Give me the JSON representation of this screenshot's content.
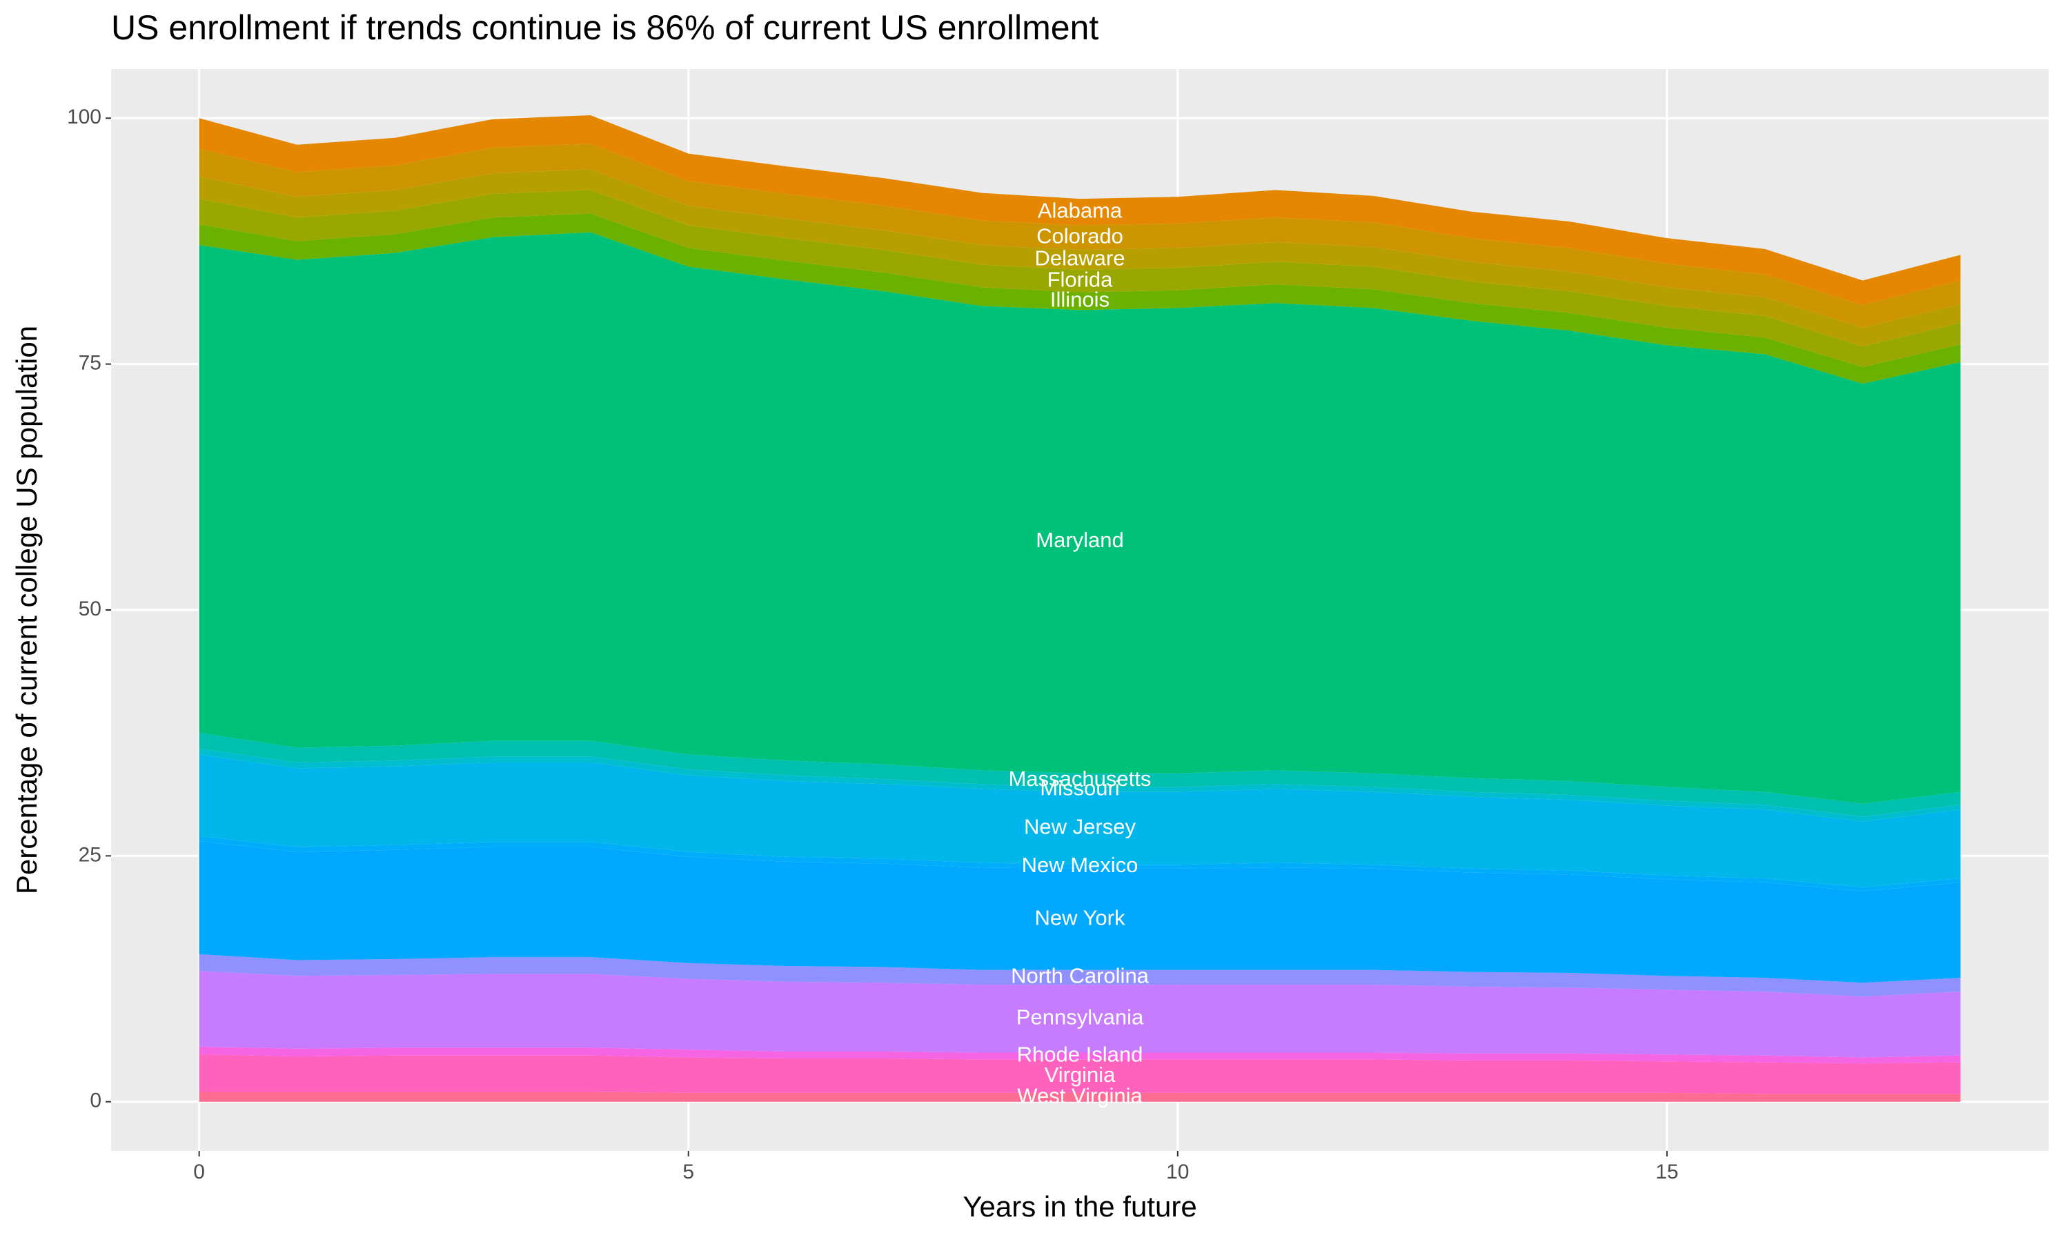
{
  "chart_data": {
    "type": "stacked_area",
    "title": "US enrollment if trends continue is 86% of current US enrollment",
    "x_label": "Years in the future",
    "y_label": "Percentage of current college US population",
    "x": [
      0,
      1,
      2,
      3,
      4,
      5,
      6,
      7,
      8,
      9,
      10,
      11,
      12,
      13,
      14,
      15,
      16,
      17,
      18
    ],
    "xlim": [
      -0.9,
      18.9
    ],
    "xticks": [
      0,
      5,
      10,
      15
    ],
    "ylim": [
      -5,
      105
    ],
    "yticks": [
      0,
      25,
      50,
      75,
      100
    ],
    "grid": true,
    "label_x": 9,
    "series": [
      {
        "name": "West Virginia",
        "color": "#FF6C91",
        "values": [
          1.0,
          1.0,
          1.0,
          1.0,
          1.0,
          0.9,
          0.9,
          0.9,
          0.9,
          0.9,
          0.9,
          0.9,
          0.9,
          0.9,
          0.9,
          0.9,
          0.8,
          0.8,
          0.8
        ]
      },
      {
        "name": "Virginia",
        "color": "#FF62BC",
        "values": [
          3.8,
          3.6,
          3.7,
          3.7,
          3.7,
          3.6,
          3.5,
          3.5,
          3.4,
          3.4,
          3.4,
          3.4,
          3.4,
          3.3,
          3.3,
          3.2,
          3.2,
          3.1,
          3.2
        ]
      },
      {
        "name": "Rhode Island",
        "color": "#F564E3",
        "values": [
          0.8,
          0.8,
          0.8,
          0.8,
          0.8,
          0.8,
          0.7,
          0.7,
          0.7,
          0.7,
          0.7,
          0.7,
          0.7,
          0.7,
          0.7,
          0.7,
          0.7,
          0.6,
          0.7
        ]
      },
      {
        "name": "Pennsylvania",
        "color": "#C77CFF",
        "values": [
          7.7,
          7.4,
          7.4,
          7.5,
          7.5,
          7.2,
          7.1,
          7.0,
          6.9,
          6.9,
          6.9,
          6.9,
          6.9,
          6.8,
          6.7,
          6.6,
          6.5,
          6.2,
          6.5
        ]
      },
      {
        "name": "North Carolina",
        "color": "#8F91FF",
        "values": [
          1.7,
          1.6,
          1.6,
          1.7,
          1.7,
          1.6,
          1.6,
          1.6,
          1.5,
          1.5,
          1.5,
          1.5,
          1.5,
          1.5,
          1.5,
          1.4,
          1.4,
          1.4,
          1.4
        ]
      },
      {
        "name": "New York",
        "color": "#00A9FF",
        "values": [
          11.5,
          11.0,
          11.1,
          11.2,
          11.2,
          10.8,
          10.6,
          10.5,
          10.4,
          10.3,
          10.3,
          10.4,
          10.3,
          10.1,
          10.0,
          9.8,
          9.7,
          9.3,
          9.7
        ]
      },
      {
        "name": "New Mexico",
        "color": "#00ADFA",
        "values": [
          0.5,
          0.5,
          0.5,
          0.5,
          0.5,
          0.5,
          0.5,
          0.5,
          0.5,
          0.4,
          0.4,
          0.5,
          0.4,
          0.4,
          0.4,
          0.4,
          0.4,
          0.4,
          0.4
        ]
      },
      {
        "name": "New Jersey",
        "color": "#00B6EB",
        "values": [
          8.3,
          8.0,
          8.0,
          8.1,
          8.1,
          7.8,
          7.7,
          7.6,
          7.5,
          7.4,
          7.4,
          7.5,
          7.4,
          7.3,
          7.2,
          7.1,
          7.0,
          6.7,
          7.0
        ]
      },
      {
        "name": "Missouri",
        "color": "#00BDD0",
        "values": [
          0.6,
          0.6,
          0.6,
          0.6,
          0.6,
          0.6,
          0.6,
          0.5,
          0.5,
          0.5,
          0.5,
          0.5,
          0.5,
          0.5,
          0.5,
          0.5,
          0.5,
          0.5,
          0.5
        ]
      },
      {
        "name": "Massachusetts",
        "color": "#00C0AF",
        "values": [
          1.6,
          1.5,
          1.5,
          1.6,
          1.6,
          1.5,
          1.5,
          1.5,
          1.4,
          1.4,
          1.4,
          1.4,
          1.4,
          1.4,
          1.4,
          1.4,
          1.3,
          1.3,
          1.3
        ]
      },
      {
        "name": "Maryland",
        "color": "#00C17A",
        "values": [
          49.6,
          49.6,
          50.1,
          51.2,
          51.7,
          49.6,
          48.9,
          48.1,
          47.2,
          47.1,
          47.3,
          47.5,
          47.3,
          46.5,
          45.8,
          44.9,
          44.5,
          42.7,
          43.7
        ]
      },
      {
        "name": "Illinois",
        "color": "#6BB100",
        "values": [
          2.1,
          1.9,
          1.9,
          2.0,
          1.9,
          1.9,
          1.9,
          1.9,
          1.9,
          1.8,
          1.8,
          1.9,
          1.9,
          1.8,
          1.8,
          1.8,
          1.7,
          1.7,
          1.8
        ]
      },
      {
        "name": "Florida",
        "color": "#99A800",
        "values": [
          2.6,
          2.4,
          2.4,
          2.4,
          2.4,
          2.3,
          2.3,
          2.3,
          2.3,
          2.3,
          2.3,
          2.3,
          2.3,
          2.2,
          2.2,
          2.2,
          2.2,
          2.1,
          2.2
        ]
      },
      {
        "name": "Delaware",
        "color": "#B79F00",
        "values": [
          2.3,
          2.1,
          2.1,
          2.1,
          2.1,
          2.0,
          2.0,
          2.0,
          2.0,
          2.0,
          2.0,
          2.0,
          2.0,
          2.0,
          2.0,
          1.9,
          1.9,
          1.9,
          1.9
        ]
      },
      {
        "name": "Colorado",
        "color": "#CD9600",
        "values": [
          2.8,
          2.5,
          2.5,
          2.6,
          2.6,
          2.5,
          2.5,
          2.5,
          2.5,
          2.5,
          2.5,
          2.5,
          2.5,
          2.4,
          2.4,
          2.4,
          2.3,
          2.3,
          2.4
        ]
      },
      {
        "name": "Alabama",
        "color": "#E58700",
        "values": [
          3.1,
          2.8,
          2.8,
          2.9,
          2.9,
          2.8,
          2.8,
          2.8,
          2.8,
          2.7,
          2.7,
          2.8,
          2.7,
          2.7,
          2.7,
          2.6,
          2.6,
          2.5,
          2.6
        ]
      }
    ]
  }
}
